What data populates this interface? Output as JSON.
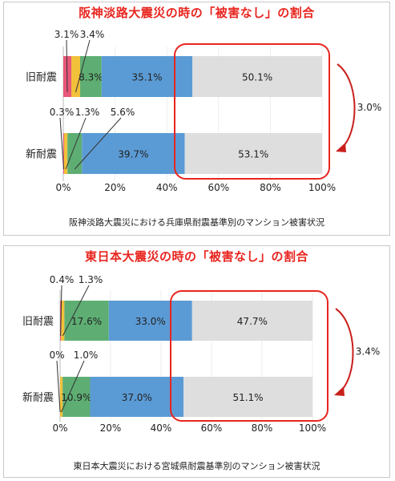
{
  "chart_data": [
    {
      "type": "bar",
      "orientation": "horizontal-stacked",
      "title": "阪神淡路大震災の時の「被害なし」の割合",
      "caption": "阪神淡路大震災における兵庫県耐震基準別のマンション被害状況",
      "categories": [
        "旧耐震",
        "新耐震"
      ],
      "series": [
        {
          "color": "#e8577a",
          "values": [
            3.1,
            0.3
          ],
          "labels": [
            "3.1%",
            "0.3%"
          ]
        },
        {
          "color": "#f2c13a",
          "values": [
            3.4,
            1.3
          ],
          "labels": [
            "3.4%",
            "1.3%"
          ]
        },
        {
          "color": "#5eae73",
          "values": [
            8.3,
            5.6
          ],
          "labels": [
            "8.3%",
            "5.6%"
          ]
        },
        {
          "color": "#5b9bd5",
          "values": [
            35.1,
            39.7
          ],
          "labels": [
            "35.1%",
            "39.7%"
          ]
        },
        {
          "color": "#dedede",
          "values": [
            50.1,
            53.1
          ],
          "labels": [
            "50.1%",
            "53.1%"
          ]
        }
      ],
      "xticks": [
        "0%",
        "20%",
        "40%",
        "60%",
        "80%",
        "100%"
      ],
      "xlim": [
        0,
        100
      ],
      "difference_label": "3.0%"
    },
    {
      "type": "bar",
      "orientation": "horizontal-stacked",
      "title": "東日本大震災の時の「被害なし」の割合",
      "caption": "東日本大震災における宮城県耐震基準別のマンション被害状況",
      "categories": [
        "旧耐震",
        "新耐震"
      ],
      "series": [
        {
          "color": "#e8577a",
          "values": [
            0.4,
            0
          ],
          "labels": [
            "0.4%",
            "0%"
          ]
        },
        {
          "color": "#f2c13a",
          "values": [
            1.3,
            1.0
          ],
          "labels": [
            "1.3%",
            "1.0%"
          ]
        },
        {
          "color": "#5eae73",
          "values": [
            17.6,
            10.9
          ],
          "labels": [
            "17.6%",
            "10.9%"
          ]
        },
        {
          "color": "#5b9bd5",
          "values": [
            33.0,
            37.0
          ],
          "labels": [
            "33.0%",
            "37.0%"
          ]
        },
        {
          "color": "#dedede",
          "values": [
            47.7,
            51.1
          ],
          "labels": [
            "47.7%",
            "51.1%"
          ]
        }
      ],
      "xticks": [
        "0%",
        "20%",
        "40%",
        "60%",
        "80%",
        "100%"
      ],
      "xlim": [
        0,
        100
      ],
      "difference_label": "3.4%"
    }
  ]
}
